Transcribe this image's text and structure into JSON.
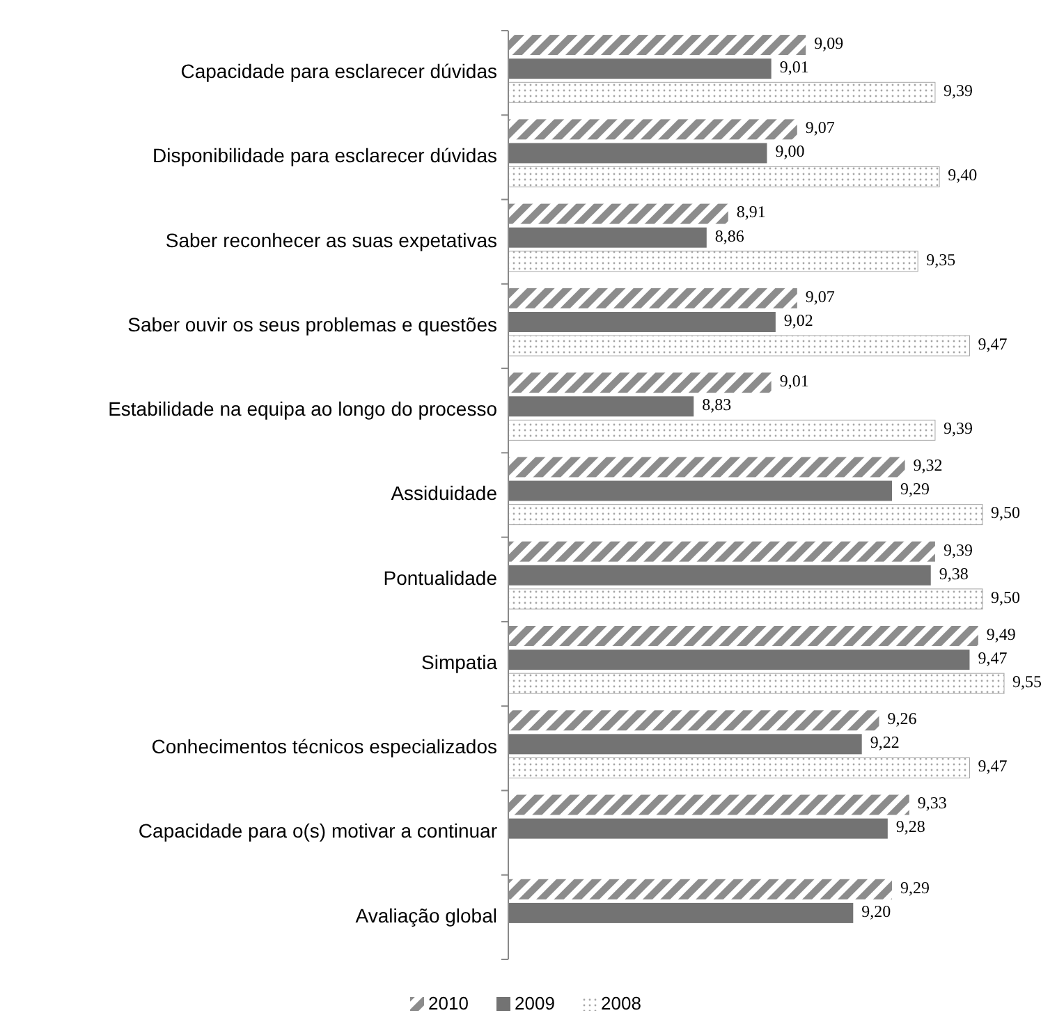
{
  "chart_data": {
    "type": "bar",
    "orientation": "horizontal",
    "categories": [
      "Capacidade para esclarecer dúvidas",
      "Disponibilidade para esclarecer dúvidas",
      "Saber reconhecer as suas expetativas",
      "Saber ouvir os seus problemas e questões",
      "Estabilidade na equipa ao longo do processo",
      "Assiduidade",
      "Pontualidade",
      "Simpatia",
      "Conhecimentos técnicos especializados",
      "Capacidade para o(s) motivar a continuar",
      "Avaliação global"
    ],
    "series": [
      {
        "name": "2010",
        "color": "#8c8c8c",
        "values": [
          9.09,
          9.07,
          8.91,
          9.07,
          9.01,
          9.32,
          9.39,
          9.49,
          9.26,
          9.33,
          9.29
        ],
        "value_labels": [
          "9,09",
          "9,07",
          "8,91",
          "9,07",
          "9,01",
          "9,32",
          "9,39",
          "9,49",
          "9,26",
          "9,33",
          "9,29"
        ]
      },
      {
        "name": "2009",
        "color": "#737373",
        "values": [
          9.01,
          9.0,
          8.86,
          9.02,
          8.83,
          9.29,
          9.38,
          9.47,
          9.22,
          9.28,
          9.2
        ],
        "value_labels": [
          "9,01",
          "9,00",
          "8,86",
          "9,02",
          "8,83",
          "9,29",
          "9,38",
          "9,47",
          "9,22",
          "9,28",
          "9,20"
        ]
      },
      {
        "name": "2008",
        "color": "#a6a6a6",
        "values": [
          9.39,
          9.4,
          9.35,
          9.47,
          9.39,
          9.5,
          9.5,
          9.55,
          9.47,
          null,
          null
        ],
        "value_labels": [
          "9,39",
          "9,40",
          "9,35",
          "9,47",
          "9,39",
          "9,50",
          "9,50",
          "9,55",
          "9,47",
          null,
          null
        ]
      }
    ],
    "xlim": [
      8.4,
      9.55
    ],
    "tick_labels": "y",
    "legend": "bottom"
  }
}
